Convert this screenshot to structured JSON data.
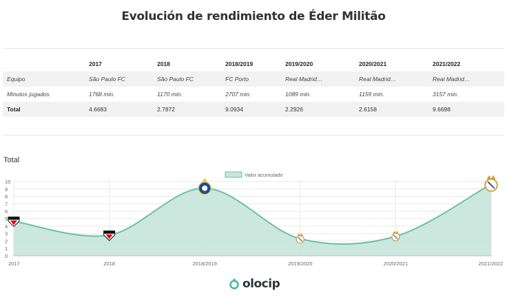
{
  "page": {
    "title": "Evolución de rendimiento de Éder Militão"
  },
  "table": {
    "columns": [
      "2017",
      "2018",
      "2018/2019",
      "2019/2020",
      "2020/2021",
      "2021/2022"
    ],
    "rows": [
      {
        "label": "Equipo",
        "cells": [
          "São Paulo FC",
          "São Paulo FC",
          "FC Porto",
          "Real Madrid…",
          "Real Madrid…",
          "Real Madrid…"
        ]
      },
      {
        "label": "Minutos jugados",
        "cells": [
          "1768 min.",
          "1170 min.",
          "2707 min.",
          "1089 min.",
          "1159 min.",
          "3157 min."
        ]
      },
      {
        "label": "Total",
        "cells": [
          "4.6683",
          "2.7872",
          "9.0934",
          "2.2926",
          "2.6158",
          "9.6698"
        ]
      }
    ]
  },
  "section_label": "Total",
  "brand": {
    "name": "olocip"
  },
  "colors": {
    "line": "#6cbfa2",
    "fill": "#c6e6da",
    "grid": "#e8e8e8",
    "axis": "#666666"
  },
  "chart_data": {
    "type": "area",
    "x": [
      "2017",
      "2018",
      "2018/2019",
      "2019/2020",
      "2020/2021",
      "2021/2022"
    ],
    "series": [
      {
        "name": "Valor acumulado",
        "values": [
          4.6683,
          2.7872,
          9.0934,
          2.2926,
          2.6158,
          9.6698
        ]
      }
    ],
    "club_icons": [
      "sao-paulo-crest-icon",
      "sao-paulo-crest-icon",
      "fc-porto-crest-icon",
      "real-madrid-crest-icon",
      "real-madrid-crest-icon",
      "real-madrid-crest-icon"
    ],
    "ylim": [
      0,
      10
    ],
    "yticks": [
      "0",
      "1",
      "2",
      "3",
      "4",
      "5",
      "6",
      "7",
      "8",
      "9",
      "10"
    ],
    "grid": true,
    "legend": "top-center"
  }
}
